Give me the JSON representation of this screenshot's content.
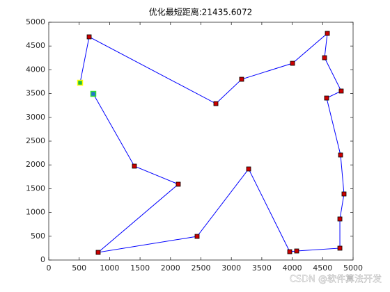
{
  "chart_data": {
    "type": "line",
    "title": "优化最短距离:21435.6072",
    "x": [
      515,
      664,
      2746,
      3169,
      4005,
      4577,
      4531,
      4805,
      4565,
      4794,
      4851,
      4783,
      4783,
      4073,
      3959,
      3284,
      2437,
      812,
      2128,
      1407,
      732
    ],
    "y": [
      3728,
      4693,
      3289,
      3801,
      4137,
      4766,
      4254,
      3553,
      3406,
      2208,
      1389,
      863,
      249,
      190,
      175,
      1915,
      497,
      161,
      1594,
      1974,
      3494
    ],
    "color": "#0000ff",
    "marker_color": "#cc0000",
    "highlights": [
      {
        "x": 515,
        "y": 3728,
        "color": "#22bb44",
        "edge": "#ffff00"
      },
      {
        "x": 732,
        "y": 3494,
        "color": "#2277cc",
        "edge": "#33dd33"
      }
    ],
    "xlim": [
      0,
      5000
    ],
    "xticks": [
      0,
      500,
      1000,
      1500,
      2000,
      2500,
      3000,
      3500,
      4000,
      4500,
      5000
    ],
    "ylim": [
      0,
      5000
    ],
    "yticks": [
      0,
      500,
      1000,
      1500,
      2000,
      2500,
      3000,
      3500,
      4000,
      4500,
      5000
    ]
  },
  "watermark": "CSDN @软件算法开发"
}
